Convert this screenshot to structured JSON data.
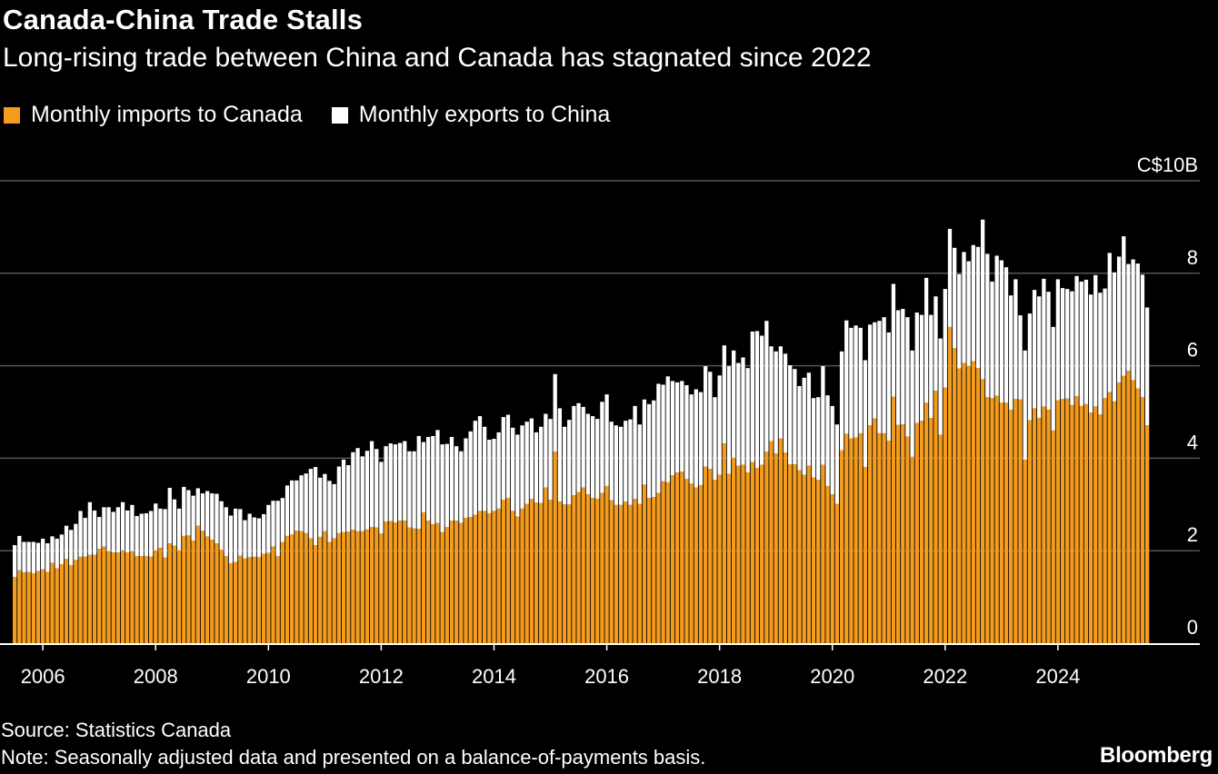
{
  "title": "Canada-China Trade Stalls",
  "subtitle": "Long-rising trade between China and Canada has stagnated since 2022",
  "source": "Source: Statistics Canada",
  "note": "Note: Seasonally adjusted data and presented on a balance-of-payments basis.",
  "logo": "Bloomberg",
  "colors": {
    "imports": "#f39c1f",
    "exports": "#ffffff",
    "background": "#000000",
    "grid": "#555555"
  },
  "chart_data": {
    "type": "bar",
    "stacked": true,
    "grid": true,
    "legend_position": "top-left",
    "y_axis_side": "right",
    "ylim": [
      0,
      10
    ],
    "y_ticks": [
      0,
      2,
      4,
      6,
      8,
      10
    ],
    "y_tick_labels": [
      "0",
      "2",
      "4",
      "6",
      "8",
      "C$10B"
    ],
    "x_tick_labels": [
      "2006",
      "2008",
      "2010",
      "2012",
      "2014",
      "2016",
      "2018",
      "2020",
      "2022",
      "2024"
    ],
    "x": [
      "2005-07",
      "2005-08",
      "2005-09",
      "2005-10",
      "2005-11",
      "2005-12",
      "2006-01",
      "2006-02",
      "2006-03",
      "2006-04",
      "2006-05",
      "2006-06",
      "2006-07",
      "2006-08",
      "2006-09",
      "2006-10",
      "2006-11",
      "2006-12",
      "2007-01",
      "2007-02",
      "2007-03",
      "2007-04",
      "2007-05",
      "2007-06",
      "2007-07",
      "2007-08",
      "2007-09",
      "2007-10",
      "2007-11",
      "2007-12",
      "2008-01",
      "2008-02",
      "2008-03",
      "2008-04",
      "2008-05",
      "2008-06",
      "2008-07",
      "2008-08",
      "2008-09",
      "2008-10",
      "2008-11",
      "2008-12",
      "2009-01",
      "2009-02",
      "2009-03",
      "2009-04",
      "2009-05",
      "2009-06",
      "2009-07",
      "2009-08",
      "2009-09",
      "2009-10",
      "2009-11",
      "2009-12",
      "2010-01",
      "2010-02",
      "2010-03",
      "2010-04",
      "2010-05",
      "2010-06",
      "2010-07",
      "2010-08",
      "2010-09",
      "2010-10",
      "2010-11",
      "2010-12",
      "2011-01",
      "2011-02",
      "2011-03",
      "2011-04",
      "2011-05",
      "2011-06",
      "2011-07",
      "2011-08",
      "2011-09",
      "2011-10",
      "2011-11",
      "2011-12",
      "2012-01",
      "2012-02",
      "2012-03",
      "2012-04",
      "2012-05",
      "2012-06",
      "2012-07",
      "2012-08",
      "2012-09",
      "2012-10",
      "2012-11",
      "2012-12",
      "2013-01",
      "2013-02",
      "2013-03",
      "2013-04",
      "2013-05",
      "2013-06",
      "2013-07",
      "2013-08",
      "2013-09",
      "2013-10",
      "2013-11",
      "2013-12",
      "2014-01",
      "2014-02",
      "2014-03",
      "2014-04",
      "2014-05",
      "2014-06",
      "2014-07",
      "2014-08",
      "2014-09",
      "2014-10",
      "2014-11",
      "2014-12",
      "2015-01",
      "2015-02",
      "2015-03",
      "2015-04",
      "2015-05",
      "2015-06",
      "2015-07",
      "2015-08",
      "2015-09",
      "2015-10",
      "2015-11",
      "2015-12",
      "2016-01",
      "2016-02",
      "2016-03",
      "2016-04",
      "2016-05",
      "2016-06",
      "2016-07",
      "2016-08",
      "2016-09",
      "2016-10",
      "2016-11",
      "2016-12",
      "2017-01",
      "2017-02",
      "2017-03",
      "2017-04",
      "2017-05",
      "2017-06",
      "2017-07",
      "2017-08",
      "2017-09",
      "2017-10",
      "2017-11",
      "2017-12",
      "2018-01",
      "2018-02",
      "2018-03",
      "2018-04",
      "2018-05",
      "2018-06",
      "2018-07",
      "2018-08",
      "2018-09",
      "2018-10",
      "2018-11",
      "2018-12",
      "2019-01",
      "2019-02",
      "2019-03",
      "2019-04",
      "2019-05",
      "2019-06",
      "2019-07",
      "2019-08",
      "2019-09",
      "2019-10",
      "2019-11",
      "2019-12",
      "2020-01",
      "2020-02",
      "2020-03",
      "2020-04",
      "2020-05",
      "2020-06",
      "2020-07",
      "2020-08",
      "2020-09",
      "2020-10",
      "2020-11",
      "2020-12",
      "2021-01",
      "2021-02",
      "2021-03",
      "2021-04",
      "2021-05",
      "2021-06",
      "2021-07",
      "2021-08",
      "2021-09",
      "2021-10",
      "2021-11",
      "2021-12",
      "2022-01",
      "2022-02",
      "2022-03",
      "2022-04",
      "2022-05",
      "2022-06",
      "2022-07",
      "2022-08",
      "2022-09",
      "2022-10",
      "2022-11",
      "2022-12",
      "2023-01",
      "2023-02",
      "2023-03",
      "2023-04",
      "2023-05",
      "2023-06",
      "2023-07",
      "2023-08",
      "2023-09",
      "2023-10",
      "2023-11",
      "2023-12",
      "2024-01",
      "2024-02",
      "2024-03",
      "2024-04",
      "2024-05",
      "2024-06",
      "2024-07",
      "2024-08",
      "2024-09",
      "2024-10",
      "2024-11",
      "2024-12",
      "2025-01",
      "2025-02",
      "2025-03",
      "2025-04",
      "2025-05",
      "2025-06",
      "2025-07",
      "2025-08"
    ],
    "series": [
      {
        "name": "Monthly imports to Canada",
        "values": [
          1.43,
          1.58,
          1.53,
          1.54,
          1.51,
          1.56,
          1.6,
          1.54,
          1.74,
          1.62,
          1.71,
          1.82,
          1.69,
          1.8,
          1.87,
          1.87,
          1.91,
          1.91,
          2.04,
          2.09,
          1.99,
          1.96,
          1.96,
          2.01,
          1.96,
          1.99,
          1.88,
          1.88,
          1.88,
          1.87,
          2.01,
          2.06,
          1.85,
          2.16,
          2.11,
          2.01,
          2.32,
          2.33,
          2.22,
          2.54,
          2.43,
          2.31,
          2.24,
          2.16,
          2.02,
          1.88,
          1.73,
          1.76,
          1.89,
          1.83,
          1.86,
          1.87,
          1.86,
          1.93,
          1.95,
          2.09,
          1.88,
          2.19,
          2.32,
          2.35,
          2.43,
          2.42,
          2.38,
          2.27,
          2.12,
          2.3,
          2.42,
          2.19,
          2.27,
          2.38,
          2.4,
          2.41,
          2.45,
          2.42,
          2.42,
          2.46,
          2.51,
          2.5,
          2.37,
          2.63,
          2.64,
          2.61,
          2.65,
          2.65,
          2.5,
          2.48,
          2.47,
          2.83,
          2.65,
          2.57,
          2.6,
          2.4,
          2.51,
          2.65,
          2.65,
          2.6,
          2.71,
          2.73,
          2.78,
          2.86,
          2.86,
          2.81,
          2.86,
          2.91,
          3.1,
          3.14,
          2.86,
          2.74,
          2.91,
          3.01,
          3.12,
          3.04,
          3.03,
          3.37,
          3.1,
          4.14,
          3.06,
          3.0,
          3.0,
          3.2,
          3.27,
          3.37,
          3.22,
          3.14,
          3.12,
          3.25,
          3.4,
          3.09,
          2.99,
          2.99,
          3.06,
          2.99,
          3.12,
          3.01,
          3.43,
          3.14,
          3.16,
          3.25,
          3.5,
          3.48,
          3.63,
          3.69,
          3.71,
          3.55,
          3.45,
          3.37,
          3.42,
          3.82,
          3.77,
          3.53,
          3.64,
          4.32,
          3.66,
          4.01,
          3.84,
          3.86,
          3.69,
          3.92,
          3.79,
          3.86,
          4.14,
          4.37,
          4.1,
          4.43,
          4.12,
          3.87,
          3.87,
          3.74,
          3.64,
          3.84,
          3.58,
          3.53,
          3.86,
          3.4,
          3.22,
          3.01,
          4.17,
          4.53,
          4.43,
          4.45,
          4.54,
          3.81,
          4.71,
          4.86,
          4.54,
          4.54,
          4.38,
          5.33,
          4.72,
          4.73,
          4.47,
          4.03,
          4.76,
          4.81,
          5.2,
          4.87,
          5.46,
          4.51,
          5.53,
          6.84,
          6.38,
          5.94,
          6.06,
          6.0,
          6.1,
          5.95,
          5.71,
          5.32,
          5.3,
          5.35,
          5.2,
          5.2,
          5.05,
          5.28,
          5.27,
          3.97,
          4.82,
          5.08,
          4.87,
          5.12,
          5.05,
          4.6,
          5.25,
          5.28,
          5.29,
          5.15,
          5.34,
          5.13,
          5.17,
          4.99,
          5.12,
          4.95,
          5.3,
          5.43,
          5.23,
          5.64,
          5.78,
          5.89,
          5.69,
          5.51,
          5.32,
          4.71
        ]
      },
      {
        "name": "Monthly exports to China",
        "values": [
          0.69,
          0.74,
          0.66,
          0.65,
          0.68,
          0.61,
          0.66,
          0.62,
          0.57,
          0.64,
          0.64,
          0.72,
          0.76,
          0.78,
          0.99,
          0.84,
          1.14,
          0.96,
          0.69,
          0.85,
          0.95,
          0.88,
          0.98,
          1.04,
          0.91,
          1.0,
          0.87,
          0.92,
          0.93,
          0.99,
          1.01,
          0.85,
          1.05,
          1.2,
          1.0,
          0.9,
          1.06,
          0.98,
          0.97,
          0.81,
          0.81,
          0.98,
          1.0,
          1.07,
          1.05,
          1.06,
          1.03,
          1.15,
          1.01,
          0.83,
          0.94,
          0.85,
          0.84,
          0.86,
          1.04,
          0.99,
          1.2,
          0.95,
          1.09,
          1.17,
          1.09,
          1.21,
          1.29,
          1.5,
          1.69,
          1.28,
          1.24,
          1.32,
          1.17,
          1.44,
          1.57,
          1.44,
          1.68,
          1.8,
          1.62,
          1.7,
          1.86,
          1.7,
          1.55,
          1.63,
          1.68,
          1.69,
          1.68,
          1.72,
          1.65,
          1.67,
          2.01,
          1.52,
          1.81,
          1.91,
          2.01,
          1.9,
          1.8,
          1.81,
          1.61,
          1.55,
          1.72,
          1.85,
          2.03,
          2.05,
          1.82,
          1.59,
          1.56,
          1.65,
          1.79,
          1.8,
          1.8,
          1.77,
          1.8,
          1.78,
          1.74,
          1.52,
          1.65,
          1.59,
          1.75,
          1.68,
          2.02,
          1.68,
          1.83,
          1.93,
          1.92,
          1.74,
          1.74,
          1.77,
          1.73,
          1.97,
          1.98,
          1.7,
          1.72,
          1.69,
          1.75,
          1.85,
          2.01,
          1.72,
          1.84,
          2.03,
          2.09,
          2.36,
          2.09,
          2.29,
          2.04,
          1.95,
          1.96,
          2.03,
          1.93,
          2.12,
          2.01,
          2.17,
          2.1,
          1.79,
          2.15,
          2.12,
          2.33,
          2.32,
          2.22,
          2.32,
          2.26,
          2.82,
          2.96,
          2.79,
          2.83,
          2.05,
          2.21,
          1.99,
          2.14,
          2.14,
          2.06,
          1.82,
          2.1,
          2.01,
          1.72,
          1.79,
          2.13,
          1.96,
          1.91,
          1.72,
          2.14,
          2.45,
          2.39,
          2.42,
          2.28,
          2.31,
          2.18,
          2.08,
          2.43,
          2.51,
          2.34,
          2.44,
          2.48,
          2.5,
          2.58,
          2.3,
          2.39,
          2.29,
          2.7,
          2.23,
          2.04,
          2.08,
          2.13,
          2.12,
          2.17,
          2.04,
          2.4,
          2.26,
          2.51,
          2.62,
          3.45,
          3.1,
          2.52,
          3.03,
          3.08,
          2.93,
          2.47,
          2.59,
          1.82,
          2.36,
          2.31,
          2.56,
          2.63,
          2.76,
          2.55,
          2.24,
          2.62,
          2.4,
          2.37,
          2.46,
          2.6,
          2.69,
          2.69,
          2.55,
          2.84,
          2.63,
          2.37,
          3.01,
          2.79,
          2.72,
          3.02,
          2.31,
          2.61,
          2.7,
          2.65,
          2.55
        ]
      }
    ]
  }
}
